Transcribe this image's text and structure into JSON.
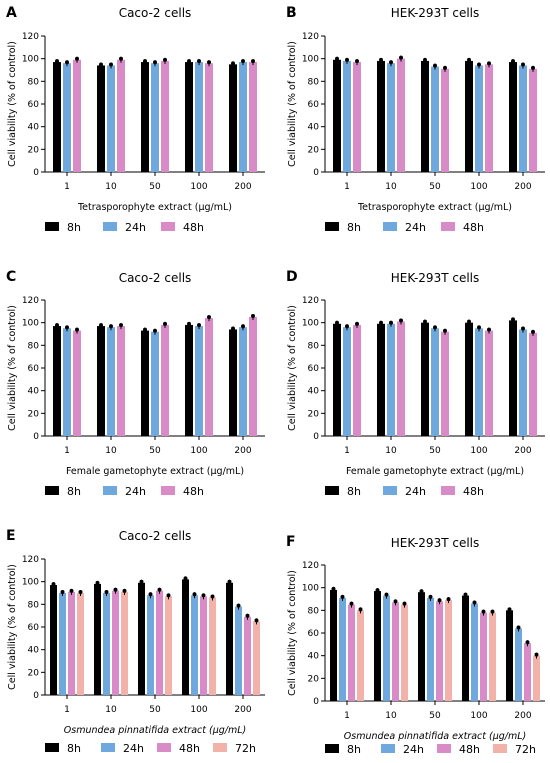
{
  "colors": {
    "8h": "#000000",
    "24h": "#6fa8dc",
    "48h": "#d98bc8",
    "72h": "#f2b1a9"
  },
  "ylabel": "Cell viability (% of control)",
  "chart_data": [
    {
      "type": "bar",
      "panel": "A",
      "title": "Caco-2 cells",
      "xlabel": "Tetrasporophyte extract (µg/mL)",
      "categories": [
        "1",
        "10",
        "50",
        "100",
        "200"
      ],
      "ylim": [
        0,
        120
      ],
      "yticks": [
        0,
        20,
        40,
        60,
        80,
        100,
        120
      ],
      "series": [
        {
          "name": "8h",
          "values": [
            97,
            94,
            97,
            97,
            95
          ]
        },
        {
          "name": "24h",
          "values": [
            96,
            94,
            96,
            97,
            97
          ]
        },
        {
          "name": "48h",
          "values": [
            99,
            99,
            98,
            96,
            97
          ]
        }
      ]
    },
    {
      "type": "bar",
      "panel": "B",
      "title": "HEK-293T cells",
      "xlabel": "Tetrasporophyte extract (µg/mL)",
      "categories": [
        "1",
        "10",
        "50",
        "100",
        "200"
      ],
      "ylim": [
        0,
        120
      ],
      "yticks": [
        0,
        20,
        40,
        60,
        80,
        100,
        120
      ],
      "series": [
        {
          "name": "8h",
          "values": [
            99,
            98,
            98,
            98,
            97
          ]
        },
        {
          "name": "24h",
          "values": [
            98,
            96,
            93,
            94,
            94
          ]
        },
        {
          "name": "48h",
          "values": [
            97,
            100,
            91,
            95,
            91
          ]
        }
      ]
    },
    {
      "type": "bar",
      "panel": "C",
      "title": "Caco-2 cells",
      "xlabel": "Female gametophyte extract (µg/mL)",
      "categories": [
        "1",
        "10",
        "50",
        "100",
        "200"
      ],
      "ylim": [
        0,
        120
      ],
      "yticks": [
        0,
        20,
        40,
        60,
        80,
        100,
        120
      ],
      "series": [
        {
          "name": "8h",
          "values": [
            97,
            97,
            93,
            98,
            94
          ]
        },
        {
          "name": "24h",
          "values": [
            95,
            96,
            92,
            97,
            96
          ]
        },
        {
          "name": "48h",
          "values": [
            93,
            97,
            98,
            104,
            105
          ]
        }
      ]
    },
    {
      "type": "bar",
      "panel": "D",
      "title": "HEK-293T cells",
      "xlabel": "Female gametophyte extract (µg/mL)",
      "categories": [
        "1",
        "10",
        "50",
        "100",
        "200"
      ],
      "ylim": [
        0,
        120
      ],
      "yticks": [
        0,
        20,
        40,
        60,
        80,
        100,
        120
      ],
      "series": [
        {
          "name": "8h",
          "values": [
            99,
            99,
            100,
            100,
            102
          ]
        },
        {
          "name": "24h",
          "values": [
            96,
            99,
            95,
            95,
            94
          ]
        },
        {
          "name": "48h",
          "values": [
            98,
            101,
            92,
            93,
            91
          ]
        }
      ]
    },
    {
      "type": "bar",
      "panel": "E",
      "title": "Caco-2 cells",
      "xlabel": "Osmundea pinnatifida extract (µg/mL)",
      "categories": [
        "1",
        "10",
        "50",
        "100",
        "200"
      ],
      "ylim": [
        0,
        120
      ],
      "yticks": [
        0,
        20,
        40,
        60,
        80,
        100,
        120
      ],
      "series": [
        {
          "name": "8h",
          "values": [
            97,
            98,
            99,
            102,
            99
          ]
        },
        {
          "name": "24h",
          "values": [
            90,
            90,
            88,
            88,
            78
          ]
        },
        {
          "name": "48h",
          "values": [
            91,
            92,
            92,
            87,
            69
          ]
        },
        {
          "name": "72h",
          "values": [
            90,
            91,
            87,
            86,
            65
          ]
        }
      ]
    },
    {
      "type": "bar",
      "panel": "F",
      "title": "HEK-293T cells",
      "xlabel": "Osmundea pinnatifida extract (µg/mL)",
      "categories": [
        "1",
        "10",
        "50",
        "100",
        "200"
      ],
      "ylim": [
        0,
        120
      ],
      "yticks": [
        0,
        20,
        40,
        60,
        80,
        100,
        120
      ],
      "series": [
        {
          "name": "8h",
          "values": [
            98,
            97,
            96,
            93,
            80
          ]
        },
        {
          "name": "24h",
          "values": [
            91,
            93,
            91,
            86,
            64
          ]
        },
        {
          "name": "48h",
          "values": [
            85,
            87,
            88,
            78,
            51
          ]
        },
        {
          "name": "72h",
          "values": [
            80,
            85,
            89,
            78,
            40
          ]
        }
      ]
    }
  ]
}
